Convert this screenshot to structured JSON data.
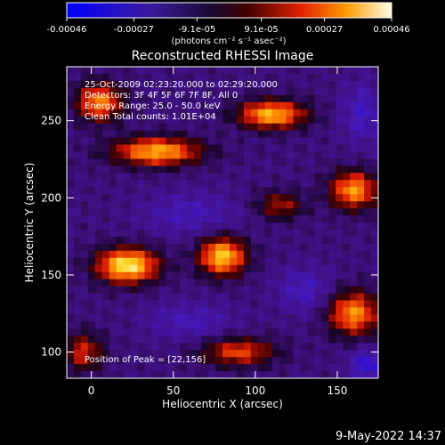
{
  "chart_data": {
    "type": "heatmap",
    "title": "Reconstructed RHESSI Image",
    "xlabel": "Heliocentric X (arcsec)",
    "ylabel": "Heliocentric Y (arcsec)",
    "xlim": [
      -15,
      175
    ],
    "ylim": [
      83,
      285
    ],
    "xticks": [
      0,
      50,
      100,
      150
    ],
    "yticks": [
      100,
      150,
      200,
      250
    ],
    "colorbar": {
      "ticks": [
        "-0.00046",
        "-0.00027",
        "-9.1e-05",
        "9.1e-05",
        "0.00027",
        "0.00046"
      ],
      "tick_values": [
        -0.00046,
        -0.00027,
        -9.1e-05,
        9.1e-05,
        0.00027,
        0.00046
      ],
      "range": [
        -0.00046,
        0.00046
      ],
      "unit_label": "(photons cm⁻² s⁻¹ asec⁻²)"
    },
    "annotations": [
      "25-Oct-2009 02:23:20.000 to 02:29:20.000",
      "Detectors: 3F 4F 5F 6F 7F 8F, All 0",
      "Energy Range: 25.0 - 50.0 keV",
      "Clean    Total counts: 1.01E+04"
    ],
    "peak_label": "Position of Peak = [22,156]",
    "peak": [
      22,
      156
    ],
    "blobs": [
      {
        "x": 22,
        "y": 156,
        "value": 0.00046,
        "rx": 18,
        "ry": 11
      },
      {
        "x": 80,
        "y": 162,
        "value": 0.0004,
        "rx": 14,
        "ry": 12
      },
      {
        "x": 40,
        "y": 230,
        "value": 0.00036,
        "rx": 26,
        "ry": 9
      },
      {
        "x": 110,
        "y": 254,
        "value": 0.00037,
        "rx": 20,
        "ry": 9
      },
      {
        "x": 160,
        "y": 205,
        "value": 0.00033,
        "rx": 14,
        "ry": 12
      },
      {
        "x": 160,
        "y": 125,
        "value": 0.00032,
        "rx": 15,
        "ry": 14
      },
      {
        "x": 90,
        "y": 100,
        "value": 0.00022,
        "rx": 22,
        "ry": 9
      },
      {
        "x": 5,
        "y": 262,
        "value": 0.0003,
        "rx": 14,
        "ry": 12
      },
      {
        "x": -5,
        "y": 100,
        "value": 0.00018,
        "rx": 12,
        "ry": 12
      },
      {
        "x": 115,
        "y": 195,
        "value": 0.00014,
        "rx": 14,
        "ry": 9
      },
      {
        "x": 60,
        "y": 190,
        "value": -0.0002,
        "rx": 28,
        "ry": 14
      },
      {
        "x": 130,
        "y": 140,
        "value": -0.00022,
        "rx": 16,
        "ry": 14
      },
      {
        "x": 60,
        "y": 120,
        "value": -0.0002,
        "rx": 26,
        "ry": 12
      },
      {
        "x": 165,
        "y": 255,
        "value": -0.00022,
        "rx": 12,
        "ry": 20
      },
      {
        "x": 168,
        "y": 92,
        "value": -0.00028,
        "rx": 10,
        "ry": 10
      }
    ]
  },
  "footer": {
    "timestamp": "9-May-2022 14:37"
  }
}
